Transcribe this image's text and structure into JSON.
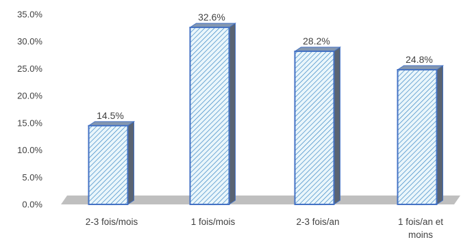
{
  "chart_data": {
    "type": "bar",
    "title": "",
    "xlabel": "",
    "ylabel": "",
    "categories": [
      [
        "2-3 fois/mois"
      ],
      [
        "1 fois/mois"
      ],
      [
        "2-3 fois/an"
      ],
      [
        "1 fois/an et",
        "moins"
      ]
    ],
    "values": [
      14.5,
      32.6,
      28.2,
      24.8
    ],
    "data_labels": [
      "14.5%",
      "32.6%",
      "28.2%",
      "24.8%"
    ],
    "ylim": [
      0,
      35
    ],
    "y_ticks": [
      "0.0%",
      "5.0%",
      "10.0%",
      "15.0%",
      "20.0%",
      "25.0%",
      "30.0%",
      "35.0%"
    ],
    "grid": false,
    "legend": "none",
    "colors": {
      "bar_fill": "#eaf6fb",
      "bar_hatch": "#2e7fc1",
      "bar_edge": "#4472c4",
      "bar_side": "#5a6473",
      "floor": "#bfbfbf",
      "text": "#404040"
    }
  }
}
